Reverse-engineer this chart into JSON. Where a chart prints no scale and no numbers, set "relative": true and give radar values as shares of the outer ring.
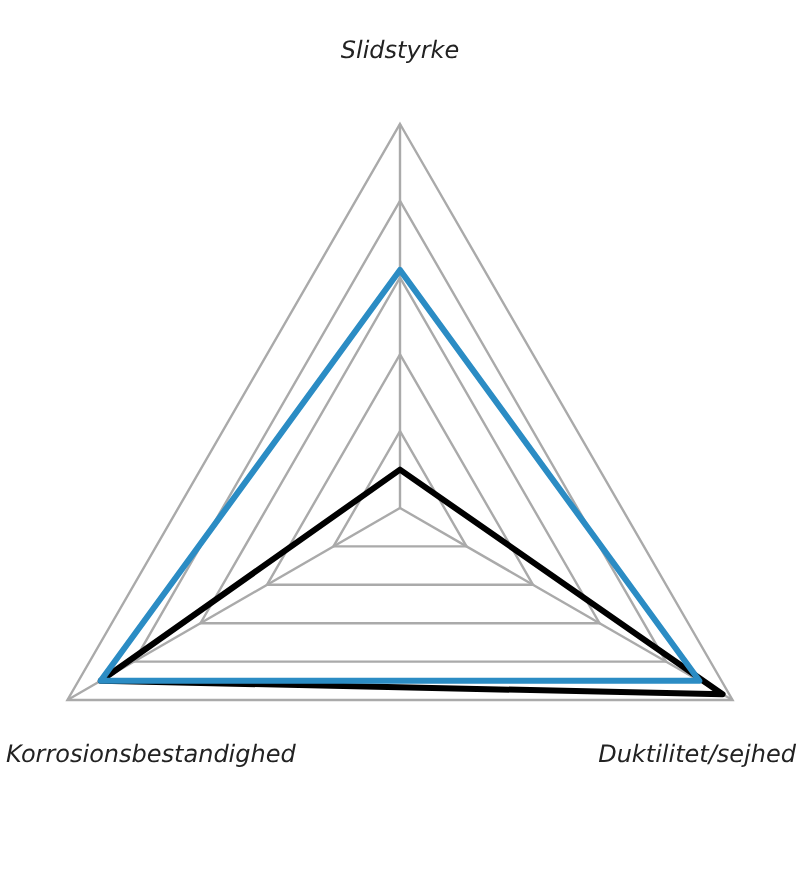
{
  "chart_data": {
    "type": "radar",
    "relative": true,
    "categories": [
      "Slidstyrke",
      "Duktilitet/sejhed",
      "Korrosionsbestandighed"
    ],
    "series": [
      {
        "color": "#2b8cc4",
        "values": [
          0.62,
          0.9,
          0.9
        ]
      },
      {
        "color": "#000000",
        "values": [
          0.1,
          0.97,
          0.9
        ]
      }
    ],
    "grid": true,
    "legend": false,
    "marker": "none"
  }
}
